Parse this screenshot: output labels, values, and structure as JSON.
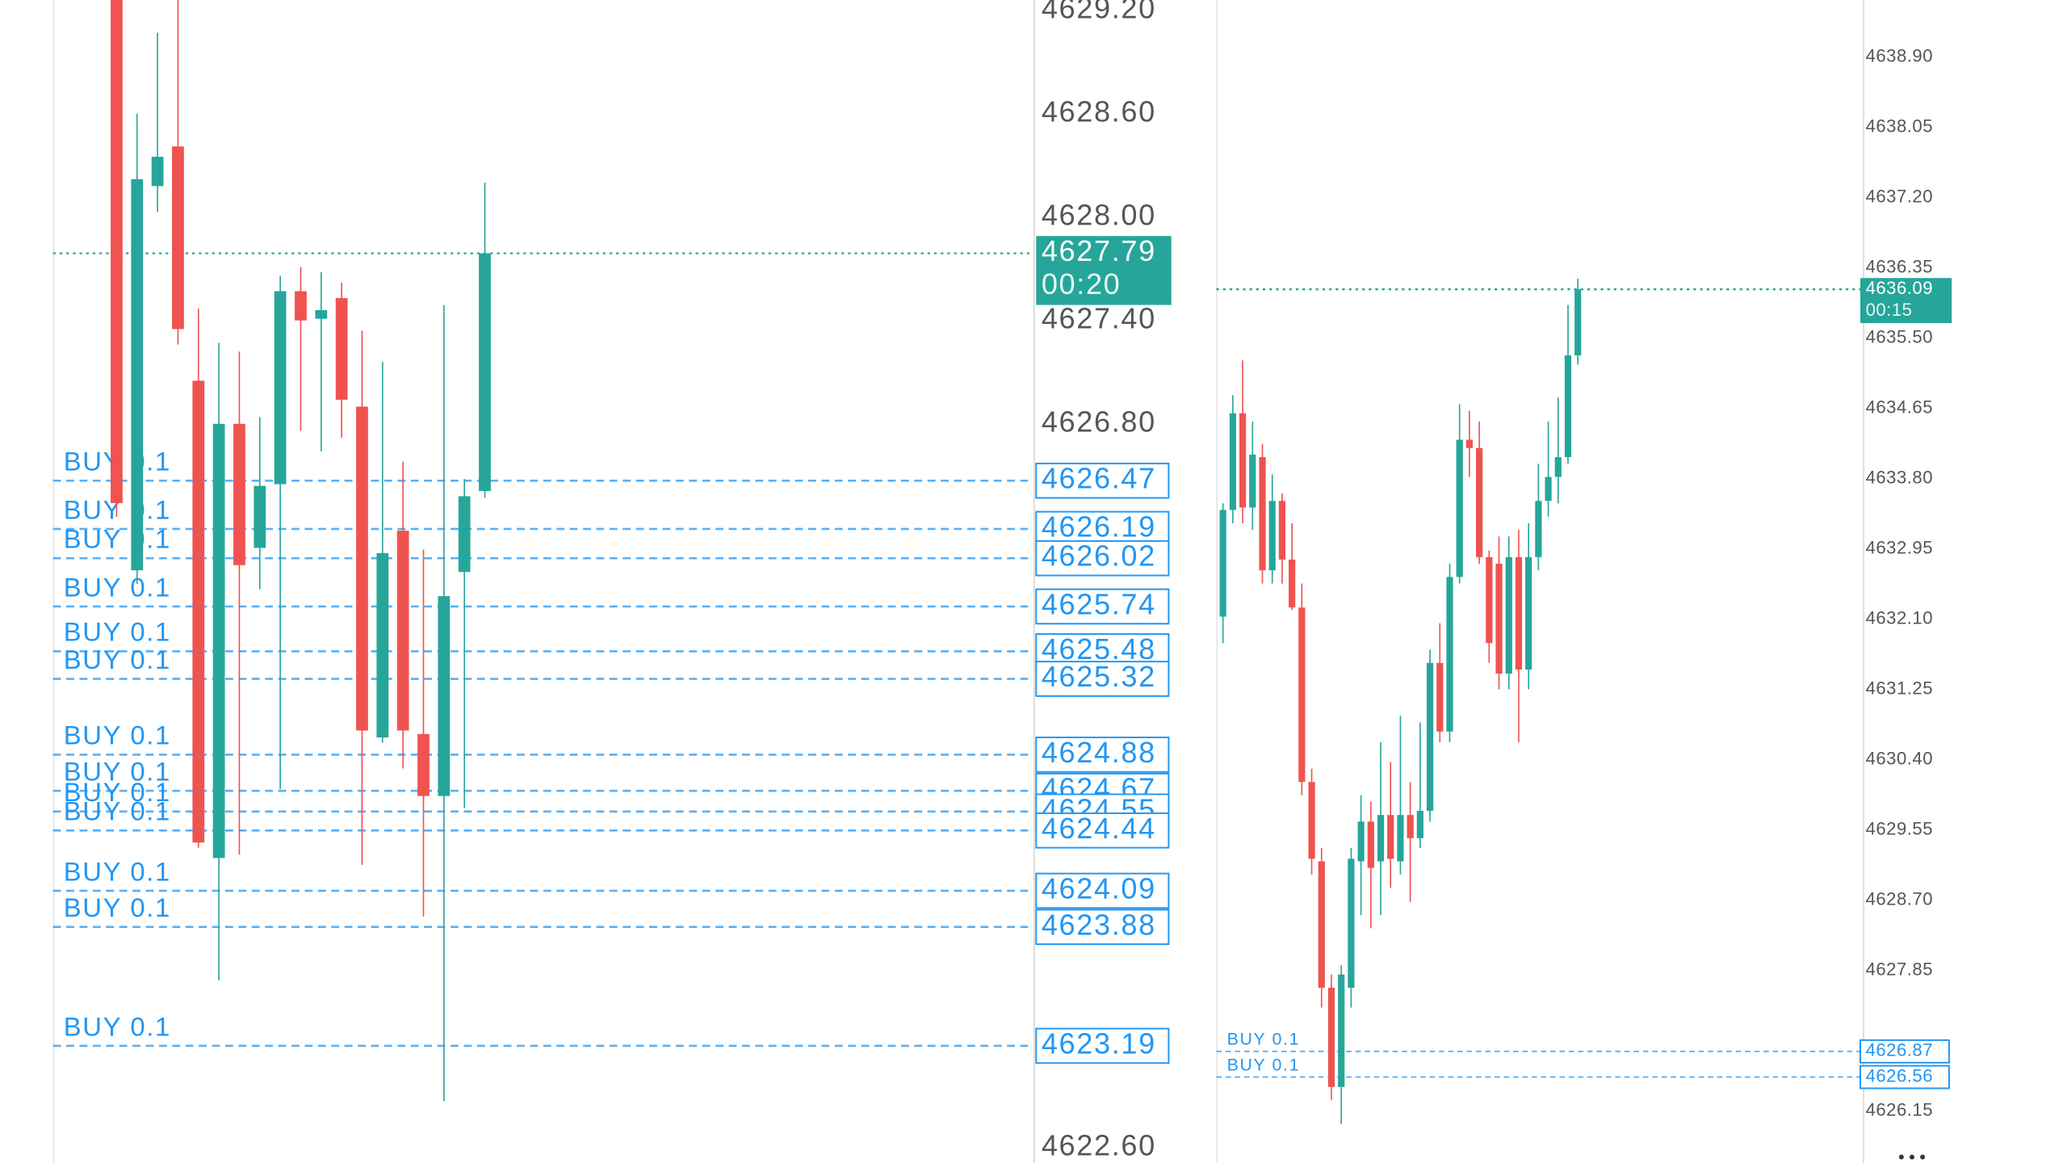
{
  "chart_data": [
    {
      "type": "candlestick",
      "ylim": [
        4622.51,
        4629.26
      ],
      "yticks": [
        {
          "value": 4629.2,
          "label": "4629.20"
        },
        {
          "value": 4628.6,
          "label": "4628.60"
        },
        {
          "value": 4628.0,
          "label": "4628.00"
        },
        {
          "value": 4627.4,
          "label": "4627.40"
        },
        {
          "value": 4626.8,
          "label": "4626.80"
        },
        {
          "value": 4622.6,
          "label": "4622.60"
        }
      ],
      "up_color": "#26a69a",
      "down_color": "#ef5350",
      "order_color": "#2196f3",
      "candles": {
        "open": [
          4629.4,
          4625.95,
          4628.18,
          4628.41,
          4627.05,
          4624.28,
          4626.8,
          4626.08,
          4626.45,
          4627.57,
          4627.41,
          4627.53,
          4626.9,
          4624.98,
          4626.18,
          4625.0,
          4624.64,
          4625.94,
          4626.41
        ],
        "high": [
          4629.6,
          4628.6,
          4629.07,
          4629.3,
          4627.47,
          4627.27,
          4627.22,
          4626.84,
          4627.66,
          4627.71,
          4627.68,
          4627.62,
          4627.34,
          4627.16,
          4626.58,
          4626.07,
          4627.49,
          4626.48,
          4628.2
        ],
        "low": [
          4626.26,
          4625.87,
          4628.03,
          4627.26,
          4624.34,
          4623.57,
          4624.3,
          4625.84,
          4624.68,
          4626.76,
          4626.64,
          4626.72,
          4624.24,
          4624.95,
          4624.8,
          4623.94,
          4622.87,
          4624.57,
          4626.37
        ],
        "close": [
          4626.34,
          4628.22,
          4628.35,
          4627.35,
          4624.37,
          4626.8,
          4625.98,
          4626.44,
          4627.57,
          4627.4,
          4627.46,
          4626.94,
          4625.02,
          4626.05,
          4625.02,
          4624.64,
          4625.8,
          4626.38,
          4627.79
        ]
      },
      "current_price": {
        "value": 4627.79,
        "countdown": "00:20"
      },
      "orders": [
        {
          "label": "BUY 0.1",
          "price": 4626.47
        },
        {
          "label": "BUY 0.1",
          "price": 4626.19
        },
        {
          "label": "BUY 0.1",
          "price": 4626.02
        },
        {
          "label": "BUY 0.1",
          "price": 4625.74
        },
        {
          "label": "BUY 0.1",
          "price": 4625.48
        },
        {
          "label": "BUY 0.1",
          "price": 4625.32
        },
        {
          "label": "BUY 0.1",
          "price": 4624.88
        },
        {
          "label": "BUY 0.1",
          "price": 4624.67
        },
        {
          "label": "BUY 0.1",
          "price": 4624.55
        },
        {
          "label": "BUY 0.1",
          "price": 4624.44
        },
        {
          "label": "BUY 0.1",
          "price": 4624.09
        },
        {
          "label": "BUY 0.1",
          "price": 4623.88
        },
        {
          "label": "BUY 0.1",
          "price": 4623.19
        }
      ]
    },
    {
      "type": "candlestick",
      "ylim": [
        4625.52,
        4639.59
      ],
      "yticks": [
        {
          "value": 4638.9,
          "label": "4638.90"
        },
        4638.05,
        {
          "value": 4637.2,
          "label": "4637.20"
        },
        4636.35,
        {
          "value": 4635.5,
          "label": "4635.50"
        },
        4634.65,
        {
          "value": 4633.8,
          "label": "4633.80"
        },
        4632.95,
        {
          "value": 4632.1,
          "label": "4632.10"
        },
        4631.25,
        {
          "value": 4630.4,
          "label": "4630.40"
        },
        4629.55,
        {
          "value": 4628.7,
          "label": "4628.70"
        },
        4627.85,
        4626.15
      ],
      "up_color": "#26a69a",
      "down_color": "#ef5350",
      "order_color": "#2196f3",
      "candles": {
        "open": [
          4632.13,
          4633.42,
          4634.59,
          4633.45,
          4634.06,
          4632.69,
          4633.53,
          4632.82,
          4632.24,
          4630.13,
          4629.17,
          4627.64,
          4626.44,
          4627.64,
          4629.17,
          4629.65,
          4629.17,
          4629.73,
          4629.17,
          4629.73,
          4629.45,
          4629.78,
          4631.57,
          4630.74,
          4632.61,
          4634.27,
          4634.17,
          4632.85,
          4632.77,
          4631.44,
          4632.85,
          4631.49,
          4632.85,
          4633.53,
          4633.82,
          4634.06,
          4635.29
        ],
        "high": [
          4633.5,
          4634.81,
          4635.23,
          4634.49,
          4634.22,
          4633.85,
          4633.62,
          4633.26,
          4632.53,
          4630.29,
          4629.33,
          4627.8,
          4627.91,
          4629.33,
          4629.97,
          4629.89,
          4630.61,
          4630.37,
          4630.93,
          4630.13,
          4630.85,
          4631.73,
          4632.05,
          4632.77,
          4634.7,
          4634.62,
          4634.49,
          4632.93,
          4633.1,
          4633.1,
          4633.18,
          4633.26,
          4633.98,
          4634.49,
          4634.78,
          4635.9,
          4636.22
        ],
        "low": [
          4631.81,
          4633.26,
          4633.26,
          4633.18,
          4632.53,
          4632.53,
          4632.53,
          4632.21,
          4629.97,
          4629.01,
          4627.4,
          4626.28,
          4625.99,
          4627.4,
          4628.52,
          4628.36,
          4628.52,
          4628.85,
          4629.01,
          4628.68,
          4629.33,
          4629.65,
          4630.61,
          4630.61,
          4632.53,
          4633.82,
          4632.77,
          4631.57,
          4631.25,
          4631.25,
          4630.61,
          4631.25,
          4632.69,
          4633.34,
          4633.5,
          4633.98,
          4635.18
        ],
        "close": [
          4633.42,
          4634.59,
          4633.45,
          4634.09,
          4632.69,
          4633.53,
          4632.82,
          4632.24,
          4630.13,
          4629.2,
          4627.64,
          4626.44,
          4627.8,
          4629.2,
          4629.65,
          4629.09,
          4629.73,
          4629.2,
          4629.73,
          4629.45,
          4629.78,
          4631.57,
          4630.74,
          4632.61,
          4634.27,
          4634.17,
          4632.85,
          4631.81,
          4631.44,
          4632.85,
          4631.49,
          4632.85,
          4633.53,
          4633.82,
          4634.06,
          4635.29,
          4636.09
        ]
      },
      "current_price": {
        "value": 4636.09,
        "countdown": "00:15"
      },
      "orders": [
        {
          "label": "BUY 0.1",
          "price": 4626.87
        },
        {
          "label": "BUY 0.1",
          "price": 4626.56
        }
      ]
    }
  ]
}
